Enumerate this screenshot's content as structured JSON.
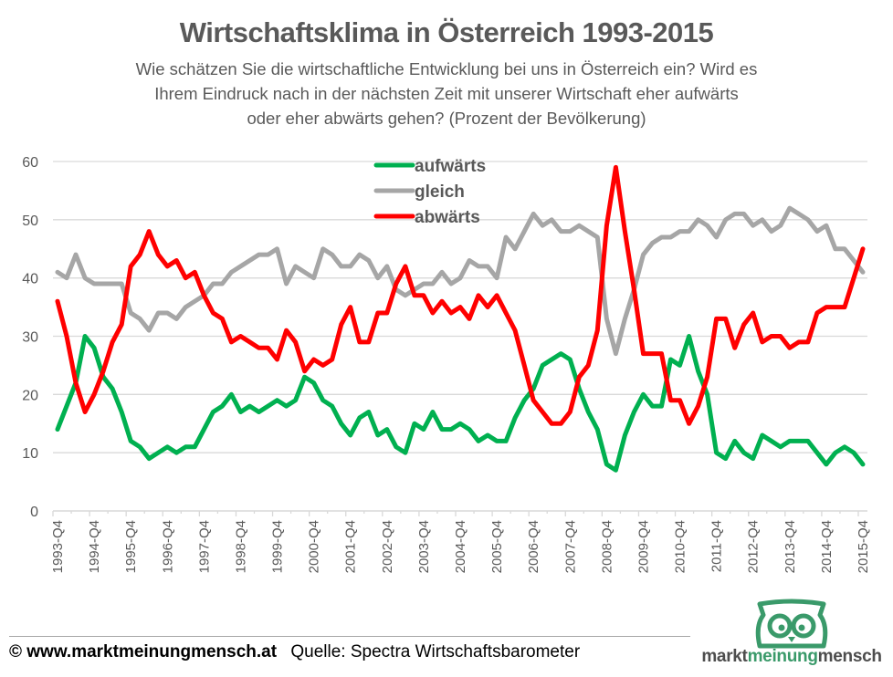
{
  "header": {
    "title": "Wirtschaftsklima in Österreich 1993-2015",
    "subtitle_lines": [
      "Wie schätzen Sie die wirtschaftliche Entwicklung bei uns in Österreich ein? Wird es",
      "Ihrem Eindruck nach in der nächsten Zeit mit unserer Wirtschaft eher aufwärts",
      "oder eher abwärts gehen? (Prozent der Bevölkerung)"
    ]
  },
  "footer": {
    "copyright": "© www.marktmeinungmensch.at",
    "source": "Quelle: Spectra Wirtschaftsbarometer",
    "logo": {
      "icon": "owl-icon",
      "color": "#3a9a6a",
      "text_parts": [
        "markt",
        "meinung",
        "mensch"
      ]
    }
  },
  "chart_data": {
    "type": "line",
    "title": "Wirtschaftsklima in Österreich 1993-2015",
    "xlabel": "",
    "ylabel": "",
    "ylim": [
      0,
      60
    ],
    "yticks": [
      0,
      10,
      20,
      30,
      40,
      50,
      60
    ],
    "grid": true,
    "legend_position": "top-center",
    "x_start": "1993-Q4",
    "x_end": "2015-Q4",
    "x_frequency": "quarterly",
    "xtick_labels": [
      "1993-Q4",
      "1994-Q4",
      "1995-Q4",
      "1996-Q4",
      "1997-Q4",
      "1998-Q4",
      "1999-Q4",
      "2000-Q4",
      "2001-Q4",
      "2002-Q4",
      "2003-Q4",
      "2004-Q4",
      "2005-Q4",
      "2006-Q4",
      "2007-Q4",
      "2008-Q4",
      "2009-Q4",
      "2010-Q4",
      "2011-Q4",
      "2012-Q4",
      "2013-Q4",
      "2014-Q4",
      "2015-Q4"
    ],
    "series": [
      {
        "name": "aufwärts",
        "color": "#00b050",
        "values": [
          14,
          18,
          22,
          30,
          28,
          23,
          21,
          17,
          12,
          11,
          9,
          10,
          11,
          10,
          11,
          11,
          14,
          17,
          18,
          20,
          17,
          18,
          17,
          18,
          19,
          18,
          19,
          23,
          22,
          19,
          18,
          15,
          13,
          16,
          17,
          13,
          14,
          11,
          10,
          15,
          14,
          17,
          14,
          14,
          15,
          14,
          12,
          13,
          12,
          12,
          16,
          19,
          21,
          25,
          26,
          27,
          26,
          21,
          17,
          14,
          8,
          7,
          13,
          17,
          20,
          18,
          18,
          26,
          25,
          30,
          24,
          20,
          10,
          9,
          12,
          10,
          9,
          13,
          12,
          11,
          12,
          12,
          12,
          10,
          8,
          10,
          11,
          10,
          8
        ]
      },
      {
        "name": "gleich",
        "color": "#a6a6a6",
        "values": [
          41,
          40,
          44,
          40,
          39,
          39,
          39,
          39,
          34,
          33,
          31,
          34,
          34,
          33,
          35,
          36,
          37,
          39,
          39,
          41,
          42,
          43,
          44,
          44,
          45,
          39,
          42,
          41,
          40,
          45,
          44,
          42,
          42,
          44,
          43,
          40,
          42,
          38,
          37,
          38,
          39,
          39,
          41,
          39,
          40,
          43,
          42,
          42,
          40,
          47,
          45,
          48,
          51,
          49,
          50,
          48,
          48,
          49,
          48,
          47,
          33,
          27,
          33,
          38,
          44,
          46,
          47,
          47,
          48,
          48,
          50,
          49,
          47,
          50,
          51,
          51,
          49,
          50,
          48,
          49,
          52,
          51,
          50,
          48,
          49,
          45,
          45,
          43,
          41
        ]
      },
      {
        "name": "abwärts",
        "color": "#ff0000",
        "values": [
          36,
          30,
          22,
          17,
          20,
          24,
          29,
          32,
          42,
          44,
          48,
          44,
          42,
          43,
          40,
          41,
          37,
          34,
          33,
          29,
          30,
          29,
          28,
          28,
          26,
          31,
          29,
          24,
          26,
          25,
          26,
          32,
          35,
          29,
          29,
          34,
          34,
          39,
          42,
          37,
          37,
          34,
          36,
          34,
          35,
          33,
          37,
          35,
          37,
          34,
          31,
          25,
          19,
          17,
          15,
          15,
          17,
          23,
          25,
          31,
          49,
          59,
          48,
          38,
          27,
          27,
          27,
          19,
          19,
          15,
          18,
          23,
          33,
          33,
          28,
          32,
          34,
          29,
          30,
          30,
          28,
          29,
          29,
          34,
          35,
          35,
          35,
          40,
          45
        ]
      }
    ]
  }
}
